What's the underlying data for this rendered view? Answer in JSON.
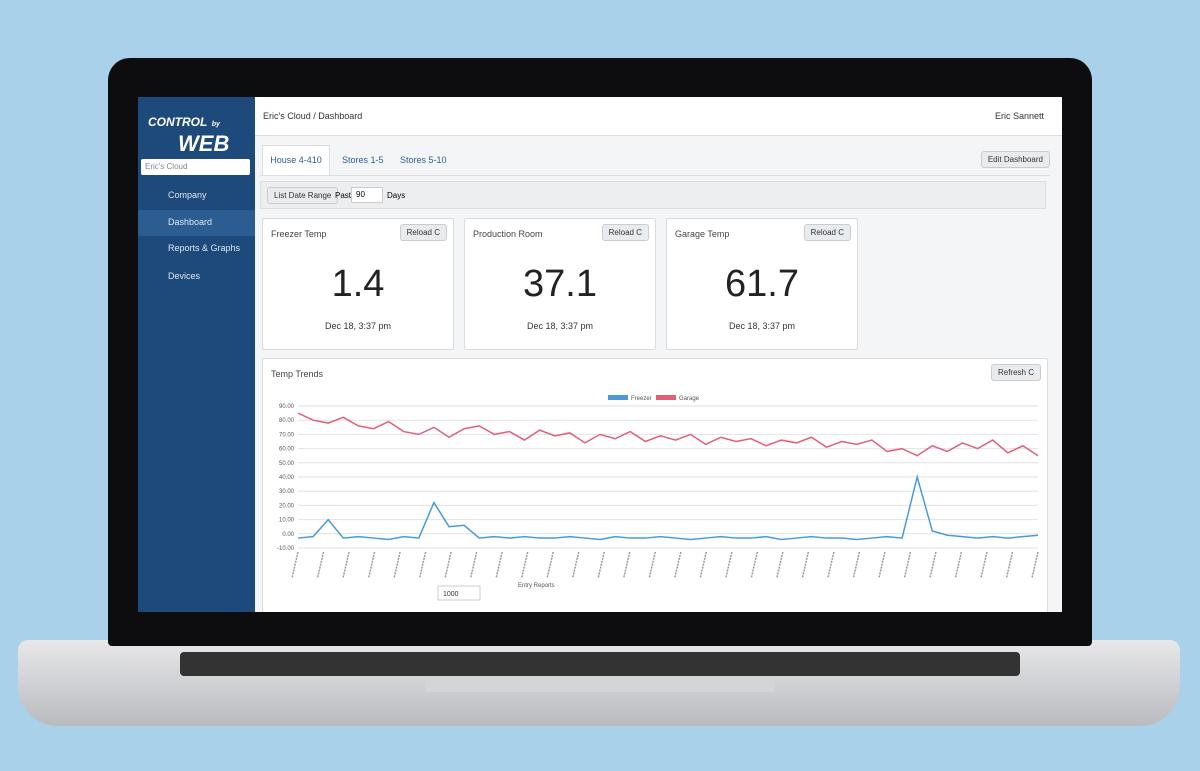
{
  "sidebar": {
    "logo_top": "CONTROL",
    "logo_by": "by",
    "logo_main": "WEB",
    "account": "Eric's Cloud",
    "menu": [
      "Company",
      "Dashboard",
      "Reports & Graphs",
      "Devices"
    ]
  },
  "header": {
    "breadcrumb": "Eric's Cloud / Dashboard",
    "user": "Eric Sannett"
  },
  "tabs": [
    "House 4-410",
    "Stores 1-5",
    "Stores 5-10"
  ],
  "edit_button": "Edit Dashboard",
  "toolbar": {
    "label": "List Date Range",
    "mode": "Past",
    "amount": "90",
    "unit": "Days"
  },
  "cards": [
    {
      "title": "Freezer Temp",
      "reload": "Reload C",
      "value": 1.4,
      "time": "Dec 18,  3:37 pm"
    },
    {
      "title": "Production Room",
      "reload": "Reload C",
      "value": 37.1,
      "time": "Dec 18,  3:37 pm"
    },
    {
      "title": "Garage Temp",
      "reload": "Reload C",
      "value": 61.7,
      "time": "Dec 18,  3:37 pm"
    }
  ],
  "chart_panel": {
    "title": "Temp Trends",
    "refresh": "Refresh C",
    "entries_label": "Entry Reports",
    "entries": "1000"
  },
  "chart_data": {
    "type": "line",
    "grid": true,
    "ylim": [
      -10,
      90
    ],
    "yticks": [
      {
        "value": -10,
        "label": "-10.00"
      },
      {
        "value": 0,
        "label": "0.00"
      },
      {
        "value": 10,
        "label": "10.00"
      },
      {
        "value": 20,
        "label": "20.00"
      },
      {
        "value": 30,
        "label": "30.00"
      },
      {
        "value": 40,
        "label": "40.00"
      },
      {
        "value": 50,
        "label": "50.00"
      },
      {
        "value": 60,
        "label": "60.00"
      },
      {
        "value": 70,
        "label": "70.00"
      },
      {
        "value": 80,
        "label": "80.00"
      },
      {
        "value": 90,
        "label": "90.00"
      }
    ],
    "series": [
      {
        "name": "Freezer",
        "color": "#4a9ad8",
        "values": [
          -3,
          -2,
          10,
          -3,
          -2,
          -3,
          -4,
          -2,
          -3,
          22,
          5,
          6,
          -3,
          -2,
          -3,
          -2,
          -3,
          -3,
          -2,
          -3,
          -4,
          -2,
          -3,
          -3,
          -2,
          -3,
          -4,
          -3,
          -2,
          -3,
          -3,
          -2,
          -4,
          -3,
          -2,
          -3,
          -3,
          -4,
          -3,
          -2,
          -3,
          40,
          2,
          -1,
          -2,
          -3,
          -2,
          -3,
          -2,
          -1
        ]
      },
      {
        "name": "Garage",
        "color": "#e0607a",
        "values": [
          85,
          80,
          78,
          82,
          76,
          74,
          79,
          72,
          70,
          75,
          68,
          74,
          76,
          70,
          72,
          66,
          73,
          69,
          71,
          64,
          70,
          67,
          72,
          65,
          69,
          66,
          70,
          63,
          68,
          65,
          67,
          62,
          66,
          64,
          68,
          61,
          65,
          63,
          66,
          58,
          60,
          55,
          62,
          58,
          64,
          60,
          66,
          57,
          62,
          55
        ]
      }
    ]
  }
}
